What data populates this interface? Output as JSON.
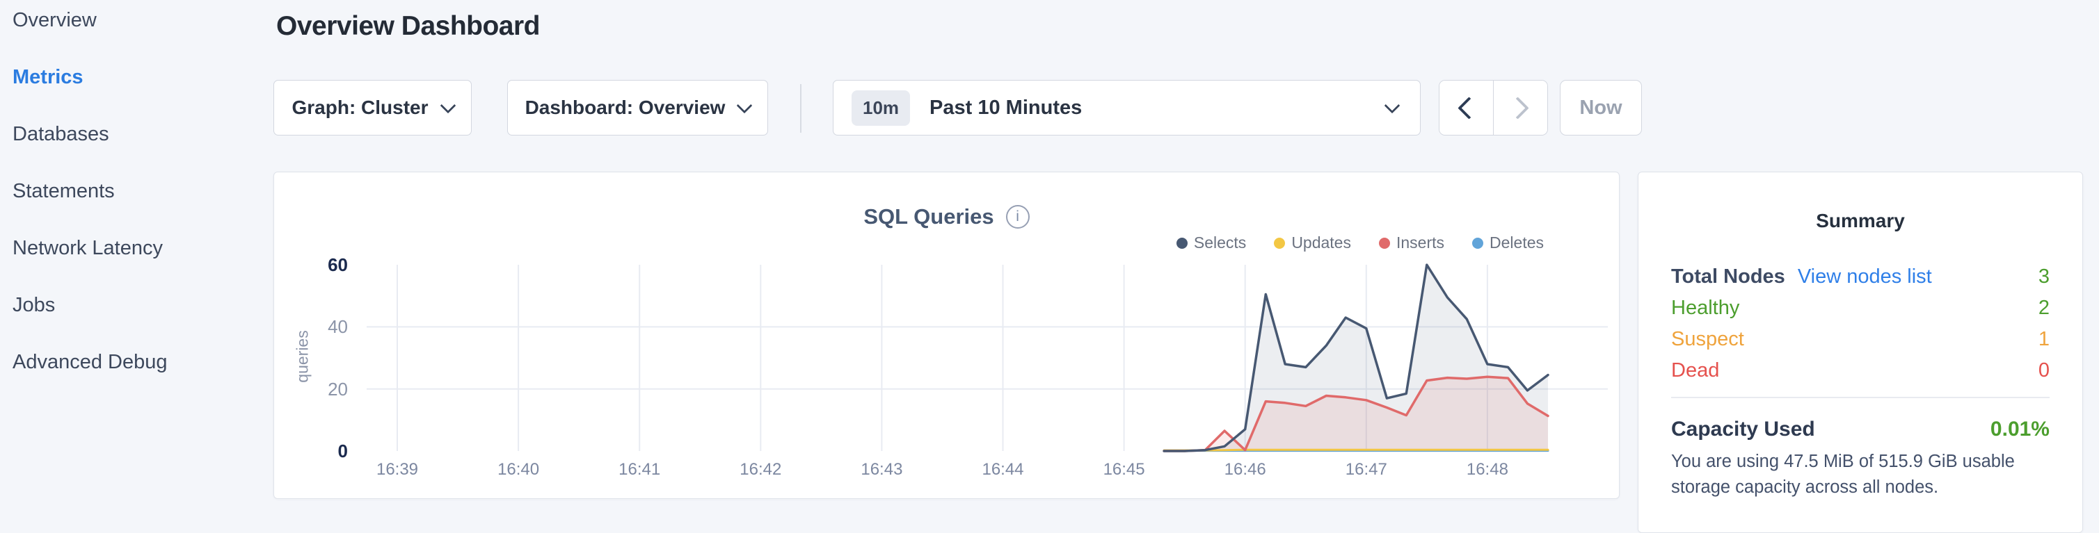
{
  "sidebar": {
    "items": [
      {
        "label": "Overview",
        "active": false
      },
      {
        "label": "Metrics",
        "active": true
      },
      {
        "label": "Databases",
        "active": false
      },
      {
        "label": "Statements",
        "active": false
      },
      {
        "label": "Network Latency",
        "active": false
      },
      {
        "label": "Jobs",
        "active": false
      },
      {
        "label": "Advanced Debug",
        "active": false
      }
    ],
    "active_color": "#2b7ce0"
  },
  "header": {
    "title": "Overview Dashboard"
  },
  "toolbar": {
    "graph_dropdown_label": "Graph: Cluster",
    "dashboard_dropdown_label": "Dashboard: Overview",
    "time_badge": "10m",
    "time_label": "Past 10 Minutes",
    "now_label": "Now"
  },
  "chart": {
    "title": "SQL Queries",
    "info_glyph": "i"
  },
  "chart_data": {
    "type": "area",
    "title": "SQL Queries",
    "ylabel": "queries",
    "ylim": [
      0,
      60
    ],
    "yticks": [
      {
        "v": 0,
        "strong": true
      },
      {
        "v": 20,
        "strong": false
      },
      {
        "v": 40,
        "strong": false
      },
      {
        "v": 60,
        "strong": true
      }
    ],
    "grid_y": [
      20,
      40
    ],
    "grid_color": "#e8ebf2",
    "legend_position": "top-right",
    "x_ticks": [
      "16:39",
      "16:40",
      "16:41",
      "16:42",
      "16:43",
      "16:44",
      "16:45",
      "16:46",
      "16:47",
      "16:48"
    ],
    "x_unit": "minutes after 16:39, points every 10s from 16:45:20 to 16:48:30",
    "series": [
      {
        "name": "Selects",
        "color": "#475872",
        "fill": "rgba(71,88,114,0.10)",
        "width": 3.5,
        "x": [
          6.33,
          6.5,
          6.67,
          6.83,
          7,
          7.17,
          7.33,
          7.5,
          7.67,
          7.83,
          8,
          8.17,
          8.33,
          8.5,
          8.67,
          8.83,
          9,
          9.17,
          9.33,
          9.5
        ],
        "values": [
          0,
          0,
          0.3,
          1.5,
          7,
          50.5,
          28,
          27,
          34,
          43,
          39.5,
          17,
          18.5,
          60,
          49.5,
          42.5,
          28,
          27,
          19.5,
          24.5
        ]
      },
      {
        "name": "Updates",
        "color": "#f3c744",
        "fill": "none",
        "width": 3,
        "x": [
          6.33,
          6.5,
          6.67,
          6.83,
          7,
          7.17,
          7.33,
          7.5,
          7.67,
          7.83,
          8,
          8.17,
          8.33,
          8.5,
          8.67,
          8.83,
          9,
          9.17,
          9.33,
          9.5
        ],
        "values": [
          0.2,
          0.2,
          0.2,
          0.3,
          0.4,
          0.4,
          0.4,
          0.4,
          0.4,
          0.4,
          0.4,
          0.4,
          0.4,
          0.4,
          0.4,
          0.4,
          0.4,
          0.4,
          0.4,
          0.4
        ]
      },
      {
        "name": "Inserts",
        "color": "#e06a6a",
        "fill": "rgba(224,106,106,0.13)",
        "width": 3.5,
        "x": [
          6.33,
          6.5,
          6.67,
          6.83,
          7,
          7.17,
          7.33,
          7.5,
          7.67,
          7.83,
          8,
          8.17,
          8.33,
          8.5,
          8.67,
          8.83,
          9,
          9.17,
          9.33,
          9.5
        ],
        "values": [
          0,
          0,
          0.3,
          6.5,
          0.3,
          16,
          15.5,
          14.5,
          17.8,
          17.3,
          16.4,
          14,
          11.5,
          22.7,
          23.6,
          23.3,
          23.9,
          23.5,
          15.3,
          11.3
        ]
      },
      {
        "name": "Deletes",
        "color": "#61a4d9",
        "fill": "none",
        "width": 3,
        "x": [
          6.33,
          6.5,
          6.67,
          6.83,
          7,
          7.17,
          7.33,
          7.5,
          7.67,
          7.83,
          8,
          8.17,
          8.33,
          8.5,
          8.67,
          8.83,
          9,
          9.17,
          9.33,
          9.5
        ],
        "values": [
          0.1,
          0.1,
          0.1,
          0.1,
          0.1,
          0.1,
          0.1,
          0.1,
          0.1,
          0.1,
          0.1,
          0.1,
          0.1,
          0.1,
          0.1,
          0.1,
          0.1,
          0.1,
          0.1,
          0.1
        ]
      }
    ]
  },
  "summary": {
    "title": "Summary",
    "rows": [
      {
        "label": "Total Nodes",
        "link": "View nodes list",
        "value": "3",
        "label_color": "#3d4a63",
        "value_color": "#4c9e2e",
        "bold": true
      },
      {
        "label": "Healthy",
        "value": "2",
        "label_color": "#4c9e2e",
        "value_color": "#4c9e2e",
        "bold": false
      },
      {
        "label": "Suspect",
        "value": "1",
        "label_color": "#efa33c",
        "value_color": "#efa33c",
        "bold": false
      },
      {
        "label": "Dead",
        "value": "0",
        "label_color": "#e5514d",
        "value_color": "#e5514d",
        "bold": false
      }
    ],
    "link_color": "#2f7fe8",
    "capacity_label": "Capacity Used",
    "capacity_value": "0.01%",
    "capacity_value_color": "#4c9e2e",
    "capacity_description": "You are using 47.5 MiB of 515.9 GiB usable storage capacity across all nodes."
  }
}
